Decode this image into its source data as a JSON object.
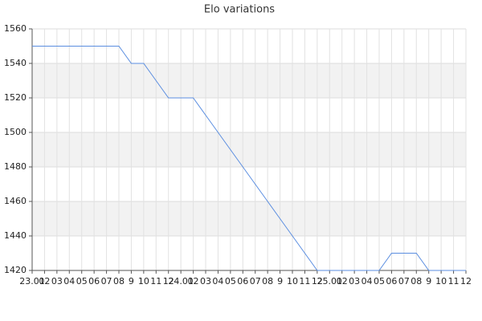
{
  "chart_data": {
    "type": "line",
    "title": "Elo variations",
    "categories": [
      "23.01",
      "02",
      "03",
      "04",
      "05",
      "06",
      "07",
      "08",
      "9",
      "10",
      "11",
      "12",
      "24.01",
      "02",
      "03",
      "04",
      "05",
      "06",
      "07",
      "08",
      "9",
      "10",
      "11",
      "12",
      "25.01",
      "02",
      "03",
      "04",
      "05",
      "06",
      "07",
      "08",
      "9",
      "10",
      "11",
      "12"
    ],
    "series": [
      {
        "name": "Elo",
        "color": "#5b8ee0",
        "values": [
          1550,
          1550,
          1550,
          1550,
          1550,
          1550,
          1550,
          1550,
          1540,
          1540,
          1530,
          1520,
          1520,
          1520,
          1510,
          1500,
          1490,
          1480,
          1470,
          1460,
          1450,
          1440,
          1430,
          1420,
          1420,
          1420,
          1420,
          1420,
          1420,
          1430,
          1430,
          1430,
          1420,
          1420,
          1420,
          1420
        ]
      }
    ],
    "ylim": [
      1420,
      1560
    ],
    "yticks": [
      1420,
      1440,
      1460,
      1480,
      1500,
      1520,
      1540,
      1560
    ],
    "grid": true
  }
}
